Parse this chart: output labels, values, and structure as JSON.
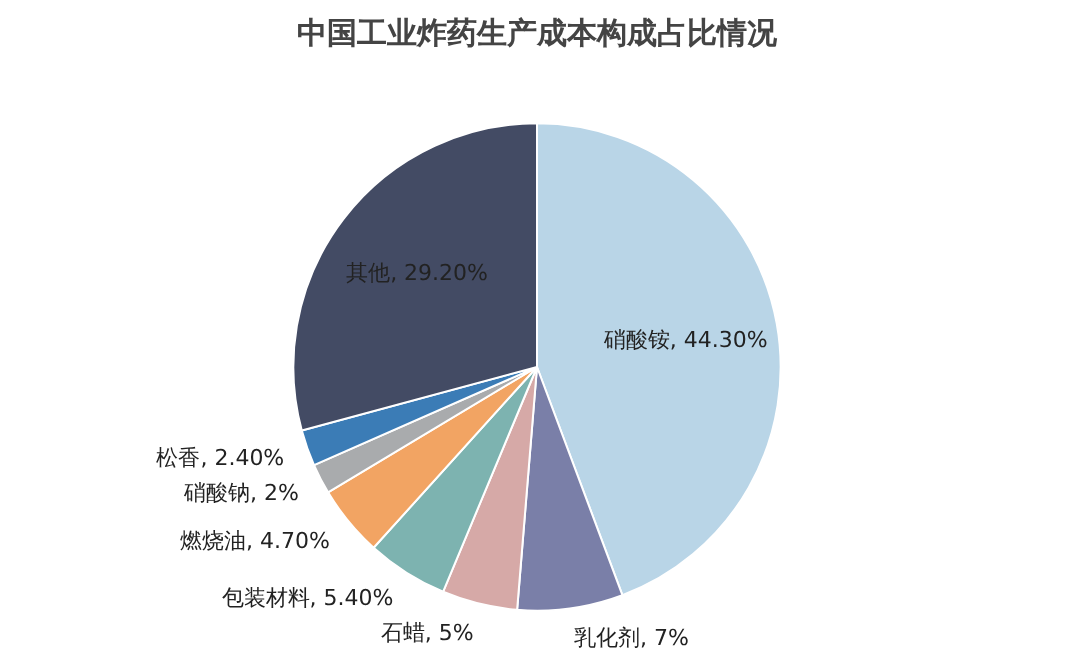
{
  "chart_data": {
    "type": "pie",
    "title": "中国工业炸药生产成本构成占比情况",
    "categories": [
      "硝酸铵",
      "乳化剂",
      "石蜡",
      "包装材料",
      "燃烧油",
      "硝酸钠",
      "松香",
      "其他"
    ],
    "values": [
      44.3,
      7,
      5,
      5.4,
      4.7,
      2,
      2.4,
      29.2
    ],
    "value_labels": [
      "44.30%",
      "7%",
      "5%",
      "5.40%",
      "4.70%",
      "2%",
      "2.40%",
      "29.20%"
    ],
    "colors": [
      "#b9d5e7",
      "#7a7fa8",
      "#d6a9a7",
      "#7db3b0",
      "#f2a463",
      "#a9abad",
      "#3b7cb6",
      "#434b64"
    ]
  }
}
